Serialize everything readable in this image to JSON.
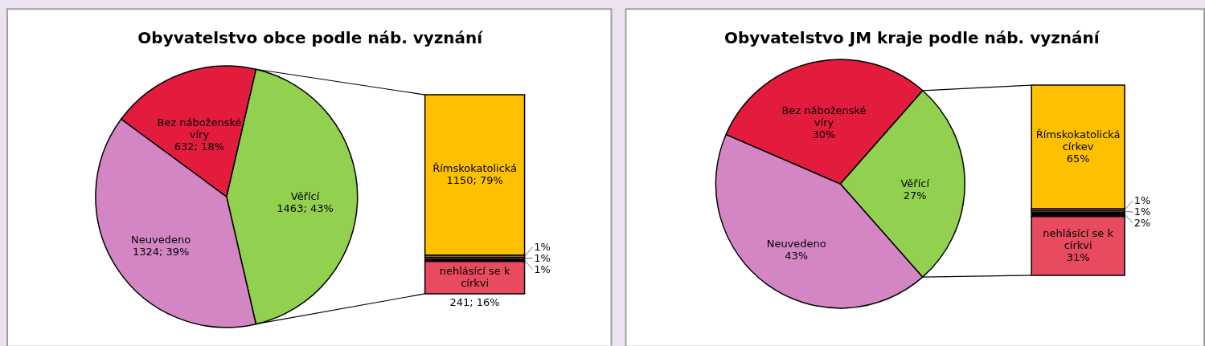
{
  "chart_data": [
    {
      "type": "pie",
      "title": "Obyvatelstvo obce podle náb. vyznání",
      "categories": [
        "Věřící",
        "Neuvedeno",
        "Bez náboženské víry"
      ],
      "values": [
        1463,
        1324,
        632
      ],
      "colors": [
        "#92d050",
        "#d486c4",
        "#e31c3d"
      ],
      "value_labels": [
        "1463; 43%",
        "1324; 39%",
        "632; 18%"
      ]
    },
    {
      "type": "bar",
      "stacked": true,
      "categories": [
        null
      ],
      "series": [
        {
          "name": "nehlásící se k církvi",
          "color": "#e84a5f",
          "values": [
            16
          ],
          "value_labels": [
            "241; 16%"
          ]
        },
        {
          "color": "#000000",
          "values": [
            1
          ],
          "value_labels": [
            "1%"
          ]
        },
        {
          "color": "#9b4f96",
          "values": [
            1
          ],
          "value_labels": [
            "1%"
          ]
        },
        {
          "color": "#b08a3a",
          "values": [
            1
          ],
          "value_labels": [
            "1%"
          ]
        },
        {
          "name": "Římskokatolická",
          "color": "#ffc000",
          "values": [
            79
          ],
          "value_labels": [
            "1150; 79%"
          ]
        }
      ]
    },
    {
      "type": "pie",
      "title": "Obyvatelstvo JM kraje podle náb. vyznání",
      "categories": [
        "Věřící",
        "Neuvedeno",
        "Bez náboženské víry"
      ],
      "values": [
        27,
        43,
        30
      ],
      "colors": [
        "#92d050",
        "#d486c4",
        "#e31c3d"
      ],
      "value_labels": [
        "27%",
        "43%",
        "30%"
      ]
    },
    {
      "type": "bar",
      "stacked": true,
      "categories": [
        null
      ],
      "series": [
        {
          "name": "nehlásící se k církvi",
          "color": "#e84a5f",
          "values": [
            31
          ],
          "value_labels": [
            "31%"
          ]
        },
        {
          "color": "#000000",
          "values": [
            2
          ],
          "value_labels": [
            "2%"
          ]
        },
        {
          "color": "#9b4f96",
          "values": [
            1
          ],
          "value_labels": [
            "1%"
          ]
        },
        {
          "color": "#b08a3a",
          "values": [
            1
          ],
          "value_labels": [
            "1%"
          ]
        },
        {
          "name": "Římskokatolická církev",
          "color": "#ffc000",
          "values": [
            65
          ],
          "value_labels": [
            "65%"
          ]
        }
      ]
    }
  ]
}
